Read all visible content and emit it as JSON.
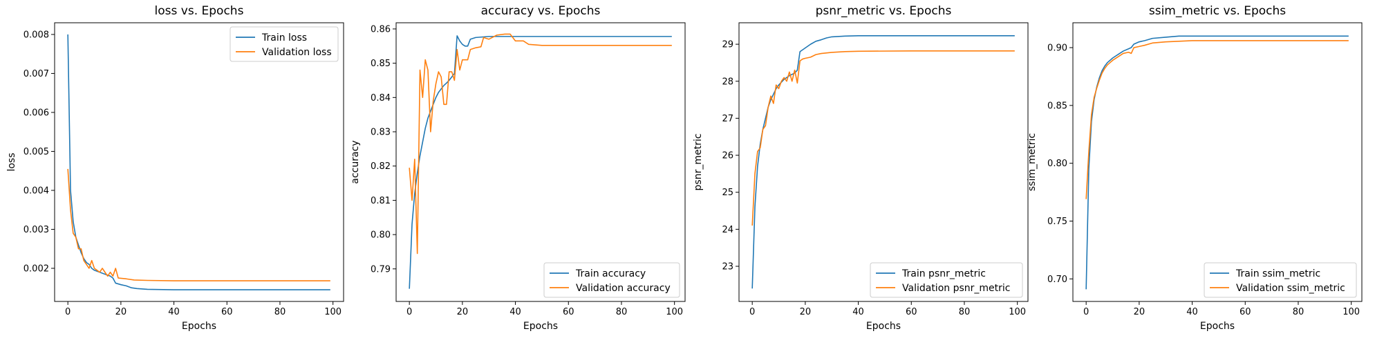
{
  "colors": {
    "train": "#1f77b4",
    "validation": "#ff7f0e"
  },
  "chart_data": [
    {
      "type": "line",
      "title": "loss vs. Epochs",
      "xlabel": "Epochs",
      "ylabel": "loss",
      "xlim": [
        -5,
        104
      ],
      "ylim": [
        0.00115,
        0.0083
      ],
      "xticks": [
        0,
        20,
        40,
        60,
        80,
        100
      ],
      "yticks": [
        0.002,
        0.003,
        0.004,
        0.005,
        0.006,
        0.007,
        0.008
      ],
      "ytick_labels": [
        "0.002",
        "0.003",
        "0.004",
        "0.005",
        "0.006",
        "0.007",
        "0.008"
      ],
      "legend": "top-right",
      "series": [
        {
          "name": "Train loss",
          "color": "#1f77b4",
          "points": [
            [
              0,
              0.008
            ],
            [
              1,
              0.004
            ],
            [
              2,
              0.0032
            ],
            [
              3,
              0.0028
            ],
            [
              4,
              0.0026
            ],
            [
              5,
              0.0024
            ],
            [
              6,
              0.00225
            ],
            [
              7,
              0.00215
            ],
            [
              8,
              0.0021
            ],
            [
              9,
              0.002
            ],
            [
              10,
              0.00195
            ],
            [
              12,
              0.0019
            ],
            [
              14,
              0.00185
            ],
            [
              16,
              0.0018
            ],
            [
              17,
              0.00175
            ],
            [
              18,
              0.00162
            ],
            [
              20,
              0.00158
            ],
            [
              22,
              0.00155
            ],
            [
              24,
              0.0015
            ],
            [
              26,
              0.00148
            ],
            [
              30,
              0.00146
            ],
            [
              40,
              0.00145
            ],
            [
              60,
              0.00145
            ],
            [
              80,
              0.00145
            ],
            [
              99,
              0.00145
            ]
          ]
        },
        {
          "name": "Validation loss",
          "color": "#ff7f0e",
          "points": [
            [
              0,
              0.00455
            ],
            [
              1,
              0.0035
            ],
            [
              2,
              0.0029
            ],
            [
              3,
              0.0028
            ],
            [
              4,
              0.0025
            ],
            [
              5,
              0.0025
            ],
            [
              6,
              0.0022
            ],
            [
              7,
              0.0021
            ],
            [
              8,
              0.002
            ],
            [
              9,
              0.0022
            ],
            [
              10,
              0.002
            ],
            [
              11,
              0.00195
            ],
            [
              12,
              0.0019
            ],
            [
              13,
              0.002
            ],
            [
              14,
              0.0019
            ],
            [
              15,
              0.0018
            ],
            [
              16,
              0.0019
            ],
            [
              17,
              0.0018
            ],
            [
              18,
              0.002
            ],
            [
              19,
              0.00175
            ],
            [
              22,
              0.00173
            ],
            [
              25,
              0.0017
            ],
            [
              30,
              0.00169
            ],
            [
              40,
              0.00168
            ],
            [
              60,
              0.00168
            ],
            [
              80,
              0.00168
            ],
            [
              99,
              0.00168
            ]
          ]
        }
      ]
    },
    {
      "type": "line",
      "title": "accuracy vs. Epochs",
      "xlabel": "Epochs",
      "ylabel": "accuracy",
      "xlim": [
        -5,
        104
      ],
      "ylim": [
        0.7805,
        0.8618
      ],
      "xticks": [
        0,
        20,
        40,
        60,
        80,
        100
      ],
      "yticks": [
        0.79,
        0.8,
        0.81,
        0.82,
        0.83,
        0.84,
        0.85,
        0.86
      ],
      "ytick_labels": [
        "0.79",
        "0.80",
        "0.81",
        "0.82",
        "0.83",
        "0.84",
        "0.85",
        "0.86"
      ],
      "legend": "bottom-right",
      "series": [
        {
          "name": "Train accuracy",
          "color": "#1f77b4",
          "points": [
            [
              0,
              0.7842
            ],
            [
              1,
              0.803
            ],
            [
              2,
              0.812
            ],
            [
              3,
              0.818
            ],
            [
              4,
              0.823
            ],
            [
              5,
              0.827
            ],
            [
              6,
              0.831
            ],
            [
              7,
              0.834
            ],
            [
              8,
              0.836
            ],
            [
              9,
              0.838
            ],
            [
              10,
              0.84
            ],
            [
              11,
              0.8415
            ],
            [
              12,
              0.8425
            ],
            [
              13,
              0.8435
            ],
            [
              14,
              0.8442
            ],
            [
              15,
              0.845
            ],
            [
              16,
              0.846
            ],
            [
              17,
              0.847
            ],
            [
              18,
              0.858
            ],
            [
              19,
              0.8565
            ],
            [
              20,
              0.8555
            ],
            [
              21,
              0.855
            ],
            [
              22,
              0.855
            ],
            [
              23,
              0.857
            ],
            [
              25,
              0.8575
            ],
            [
              30,
              0.8578
            ],
            [
              40,
              0.8578
            ],
            [
              60,
              0.8578
            ],
            [
              80,
              0.8578
            ],
            [
              99,
              0.8578
            ]
          ]
        },
        {
          "name": "Validation accuracy",
          "color": "#ff7f0e",
          "points": [
            [
              0,
              0.8195
            ],
            [
              1,
              0.81
            ],
            [
              2,
              0.822
            ],
            [
              3,
              0.7945
            ],
            [
              4,
              0.848
            ],
            [
              5,
              0.84
            ],
            [
              6,
              0.851
            ],
            [
              7,
              0.848
            ],
            [
              8,
              0.83
            ],
            [
              9,
              0.839
            ],
            [
              10,
              0.844
            ],
            [
              11,
              0.8475
            ],
            [
              12,
              0.846
            ],
            [
              13,
              0.838
            ],
            [
              14,
              0.838
            ],
            [
              15,
              0.8475
            ],
            [
              16,
              0.8475
            ],
            [
              17,
              0.845
            ],
            [
              18,
              0.854
            ],
            [
              19,
              0.848
            ],
            [
              20,
              0.851
            ],
            [
              22,
              0.851
            ],
            [
              23,
              0.854
            ],
            [
              25,
              0.8545
            ],
            [
              27,
              0.8548
            ],
            [
              28,
              0.8575
            ],
            [
              30,
              0.857
            ],
            [
              33,
              0.8582
            ],
            [
              36,
              0.8585
            ],
            [
              38,
              0.8585
            ],
            [
              40,
              0.8565
            ],
            [
              43,
              0.8565
            ],
            [
              45,
              0.8555
            ],
            [
              50,
              0.8552
            ],
            [
              60,
              0.8552
            ],
            [
              80,
              0.8552
            ],
            [
              99,
              0.8552
            ]
          ]
        }
      ]
    },
    {
      "type": "line",
      "title": "psnr_metric vs. Epochs",
      "xlabel": "Epochs",
      "ylabel": "psnr_metric",
      "xlim": [
        -5,
        104
      ],
      "ylim": [
        22.05,
        29.58
      ],
      "xticks": [
        0,
        20,
        40,
        60,
        80,
        100
      ],
      "yticks": [
        23,
        24,
        25,
        26,
        27,
        28,
        29
      ],
      "ytick_labels": [
        "23",
        "24",
        "25",
        "26",
        "27",
        "28",
        "29"
      ],
      "legend": "bottom-right",
      "series": [
        {
          "name": "Train psnr_metric",
          "color": "#1f77b4",
          "points": [
            [
              0,
              22.4
            ],
            [
              1,
              24.6
            ],
            [
              2,
              25.7
            ],
            [
              3,
              26.3
            ],
            [
              4,
              26.7
            ],
            [
              5,
              27.0
            ],
            [
              6,
              27.3
            ],
            [
              7,
              27.5
            ],
            [
              8,
              27.65
            ],
            [
              9,
              27.8
            ],
            [
              10,
              27.9
            ],
            [
              12,
              28.05
            ],
            [
              14,
              28.15
            ],
            [
              16,
              28.22
            ],
            [
              17,
              28.3
            ],
            [
              18,
              28.8
            ],
            [
              20,
              28.9
            ],
            [
              22,
              29.0
            ],
            [
              24,
              29.08
            ],
            [
              26,
              29.12
            ],
            [
              28,
              29.17
            ],
            [
              30,
              29.2
            ],
            [
              35,
              29.22
            ],
            [
              40,
              29.23
            ],
            [
              60,
              29.23
            ],
            [
              80,
              29.23
            ],
            [
              99,
              29.23
            ]
          ]
        },
        {
          "name": "Validation psnr_metric",
          "color": "#ff7f0e",
          "points": [
            [
              0,
              24.1
            ],
            [
              1,
              25.5
            ],
            [
              2,
              26.1
            ],
            [
              3,
              26.2
            ],
            [
              4,
              26.7
            ],
            [
              5,
              26.8
            ],
            [
              6,
              27.3
            ],
            [
              7,
              27.6
            ],
            [
              8,
              27.4
            ],
            [
              9,
              27.9
            ],
            [
              10,
              27.8
            ],
            [
              11,
              28.0
            ],
            [
              12,
              28.1
            ],
            [
              13,
              28.0
            ],
            [
              14,
              28.25
            ],
            [
              15,
              28.0
            ],
            [
              16,
              28.3
            ],
            [
              17,
              27.95
            ],
            [
              18,
              28.55
            ],
            [
              19,
              28.6
            ],
            [
              20,
              28.62
            ],
            [
              22,
              28.65
            ],
            [
              24,
              28.72
            ],
            [
              26,
              28.75
            ],
            [
              30,
              28.78
            ],
            [
              35,
              28.8
            ],
            [
              40,
              28.81
            ],
            [
              60,
              28.82
            ],
            [
              80,
              28.82
            ],
            [
              99,
              28.82
            ]
          ]
        }
      ]
    },
    {
      "type": "line",
      "title": "ssim_metric vs. Epochs",
      "xlabel": "Epochs",
      "ylabel": "ssim_metric",
      "xlim": [
        -5,
        104
      ],
      "ylim": [
        0.6805,
        0.9215
      ],
      "xticks": [
        0,
        20,
        40,
        60,
        80,
        100
      ],
      "yticks": [
        0.7,
        0.75,
        0.8,
        0.85,
        0.9
      ],
      "ytick_labels": [
        "0.70",
        "0.75",
        "0.80",
        "0.85",
        "0.90"
      ],
      "legend": "bottom-right",
      "series": [
        {
          "name": "Train ssim_metric",
          "color": "#1f77b4",
          "points": [
            [
              0,
              0.691
            ],
            [
              1,
              0.795
            ],
            [
              2,
              0.836
            ],
            [
              3,
              0.855
            ],
            [
              4,
              0.866
            ],
            [
              5,
              0.874
            ],
            [
              6,
              0.88
            ],
            [
              7,
              0.884
            ],
            [
              8,
              0.887
            ],
            [
              9,
              0.889
            ],
            [
              10,
              0.891
            ],
            [
              12,
              0.894
            ],
            [
              14,
              0.897
            ],
            [
              16,
              0.899
            ],
            [
              17,
              0.9
            ],
            [
              18,
              0.903
            ],
            [
              20,
              0.905
            ],
            [
              22,
              0.906
            ],
            [
              25,
              0.908
            ],
            [
              30,
              0.909
            ],
            [
              35,
              0.91
            ],
            [
              40,
              0.91
            ],
            [
              60,
              0.91
            ],
            [
              80,
              0.91
            ],
            [
              99,
              0.91
            ]
          ]
        },
        {
          "name": "Validation ssim_metric",
          "color": "#ff7f0e",
          "points": [
            [
              0,
              0.769
            ],
            [
              1,
              0.81
            ],
            [
              2,
              0.842
            ],
            [
              3,
              0.857
            ],
            [
              4,
              0.865
            ],
            [
              5,
              0.872
            ],
            [
              6,
              0.878
            ],
            [
              7,
              0.882
            ],
            [
              8,
              0.885
            ],
            [
              9,
              0.887
            ],
            [
              10,
              0.889
            ],
            [
              12,
              0.892
            ],
            [
              14,
              0.895
            ],
            [
              16,
              0.896
            ],
            [
              17,
              0.895
            ],
            [
              18,
              0.9
            ],
            [
              20,
              0.901
            ],
            [
              22,
              0.902
            ],
            [
              25,
              0.904
            ],
            [
              30,
              0.905
            ],
            [
              40,
              0.906
            ],
            [
              60,
              0.906
            ],
            [
              80,
              0.906
            ],
            [
              99,
              0.906
            ]
          ]
        }
      ]
    }
  ]
}
